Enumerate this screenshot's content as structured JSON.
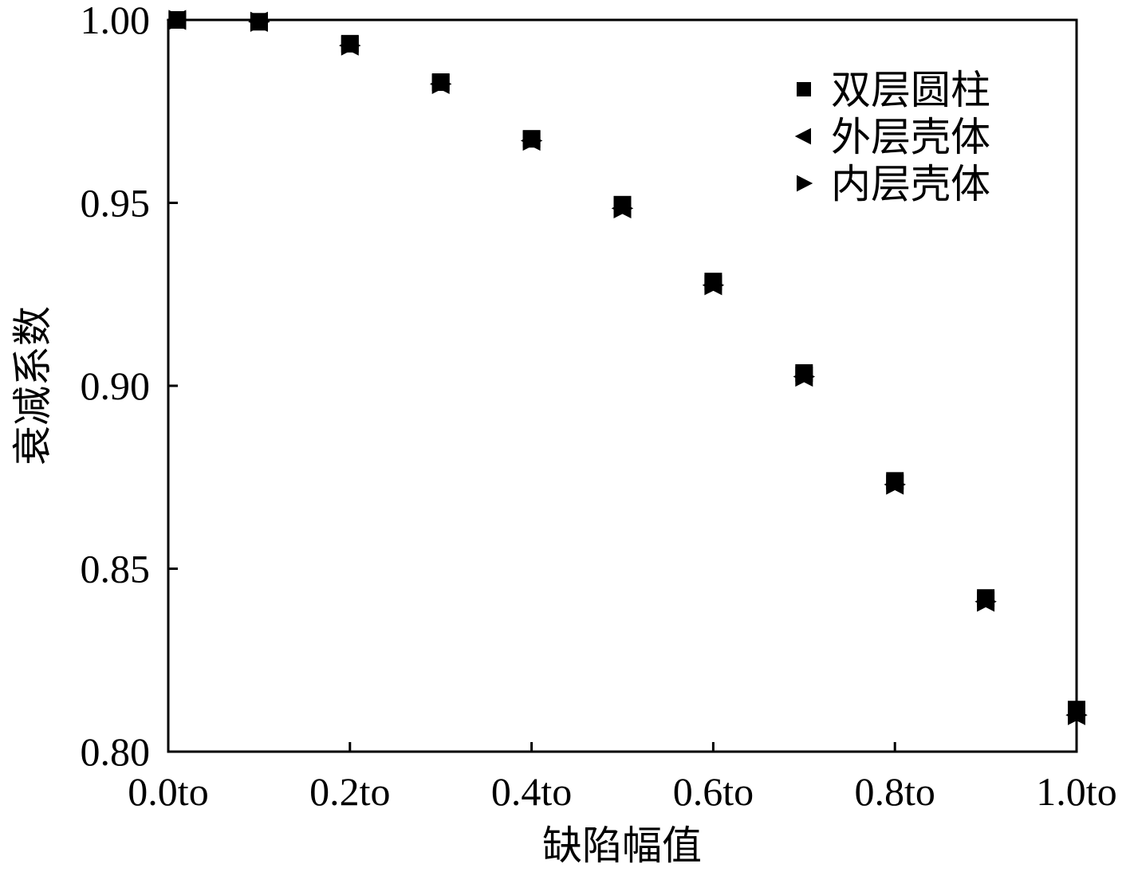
{
  "chart_data": {
    "type": "scatter",
    "title": "",
    "xlabel": "缺陷幅值",
    "ylabel": "衰减系数",
    "xlim": [
      0.0,
      1.0
    ],
    "ylim": [
      0.8,
      1.0
    ],
    "x_ticks": [
      0.0,
      0.2,
      0.4,
      0.6,
      0.8,
      1.0
    ],
    "x_tick_labels": [
      "0.0to",
      "0.2to",
      "0.4to",
      "0.6to",
      "0.8to",
      "1.0to"
    ],
    "y_ticks": [
      0.8,
      0.85,
      0.9,
      0.95,
      1.0
    ],
    "y_tick_labels": [
      "0.80",
      "0.85",
      "0.90",
      "0.95",
      "1.00"
    ],
    "grid": false,
    "legend_position": "top-right",
    "series": [
      {
        "name": "双层圆柱",
        "marker": "square",
        "color": "#000000",
        "x": [
          0.01,
          0.1,
          0.2,
          0.3,
          0.4,
          0.5,
          0.6,
          0.7,
          0.8,
          0.9,
          1.0
        ],
        "y": [
          1.0,
          0.9995,
          0.9935,
          0.983,
          0.9675,
          0.9495,
          0.9285,
          0.9035,
          0.874,
          0.842,
          0.8115
        ]
      },
      {
        "name": "外层壳体",
        "marker": "triangle-left",
        "color": "#000000",
        "x": [
          0.01,
          0.1,
          0.2,
          0.3,
          0.4,
          0.5,
          0.6,
          0.7,
          0.8,
          0.9,
          1.0
        ],
        "y": [
          1.0,
          0.9995,
          0.993,
          0.9825,
          0.967,
          0.9485,
          0.9275,
          0.9025,
          0.873,
          0.841,
          0.81
        ]
      },
      {
        "name": "内层壳体",
        "marker": "triangle-right",
        "color": "#000000",
        "x": [
          0.01,
          0.1,
          0.2,
          0.3,
          0.4,
          0.5,
          0.6,
          0.7,
          0.8,
          0.9,
          1.0
        ],
        "y": [
          1.0,
          0.9995,
          0.993,
          0.9825,
          0.967,
          0.9485,
          0.9275,
          0.9025,
          0.873,
          0.841,
          0.81
        ]
      }
    ]
  }
}
